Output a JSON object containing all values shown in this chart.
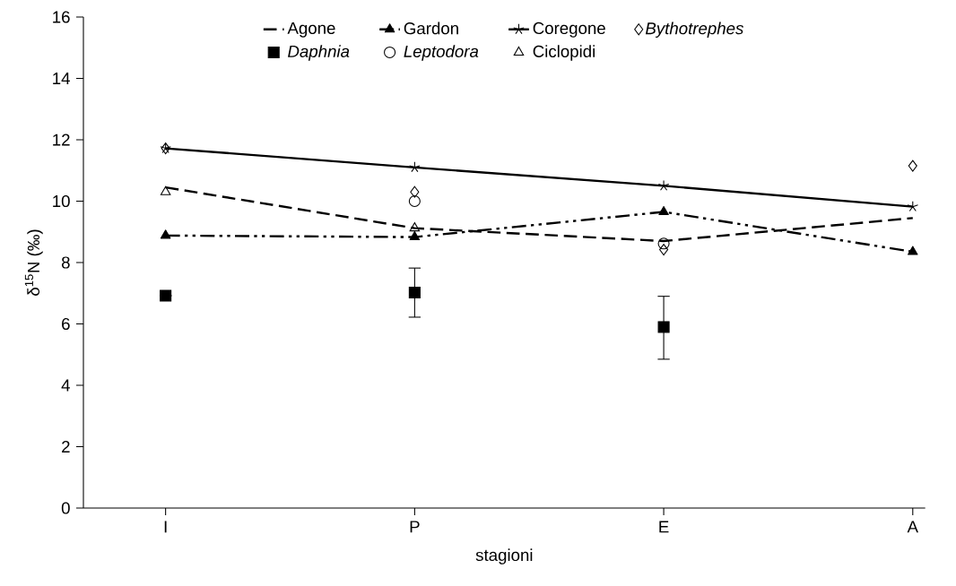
{
  "chart_data": {
    "type": "line",
    "xlabel": "stagioni",
    "ylabel": "δ$^{15}$N (‰)",
    "categories": [
      "I",
      "P",
      "E",
      "A"
    ],
    "series": [
      {
        "name": "Agone",
        "color": "#000000",
        "marker": "none",
        "line_style": "dashed",
        "values": [
          10.45,
          9.12,
          8.7,
          9.45
        ]
      },
      {
        "name": "Gardon",
        "color": "#000000",
        "marker": "triangle",
        "line_style": "dashdotdot",
        "values": [
          8.88,
          8.83,
          9.65,
          8.35
        ]
      },
      {
        "name": "Coregone",
        "color": "#000000",
        "marker": "cross",
        "line_style": "solid",
        "values": [
          11.72,
          11.1,
          10.5,
          9.82
        ]
      },
      {
        "name": "*Bythotrephes*",
        "type": "scatter",
        "color": "#000000",
        "marker": "diamond",
        "values": [
          11.72,
          10.3,
          8.42,
          11.15
        ]
      },
      {
        "name": "*Daphnia*",
        "type": "scatter",
        "color": "#000000",
        "marker": "square",
        "values": [
          6.92,
          7.02,
          5.9,
          null
        ],
        "errors": [
          null,
          [
            6.22,
            7.82
          ],
          [
            4.85,
            6.9
          ],
          null
        ]
      },
      {
        "name": "*Leptodora*",
        "type": "scatter",
        "color": "#000000",
        "marker": "circle",
        "values": [
          null,
          10.0,
          8.62,
          null
        ]
      },
      {
        "name": "Ciclopidi",
        "type": "scatter",
        "color": "#000000",
        "marker": "triangle",
        "values": [
          10.3,
          9.12,
          null,
          null
        ]
      }
    ],
    "ylim": [
      0,
      16
    ],
    "yticks": [
      0,
      2,
      4,
      6,
      8,
      10,
      12,
      14,
      16
    ],
    "grid": false,
    "legend": "top"
  }
}
